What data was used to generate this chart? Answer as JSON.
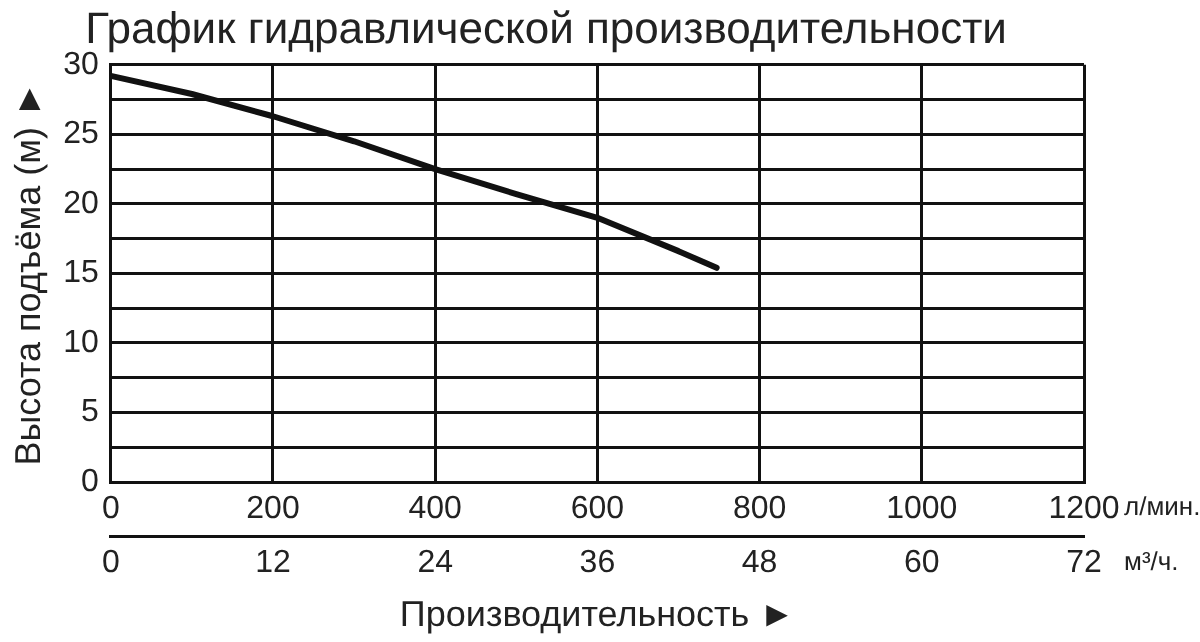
{
  "chart_data": {
    "type": "line",
    "title": "График гидравлической производительности",
    "xlabel": "Производительность ►",
    "ylabel": "Высота подъёма (м) ►",
    "x": [
      0,
      100,
      200,
      300,
      400,
      500,
      600,
      700,
      747
    ],
    "series": [
      {
        "color": "#111111",
        "values": [
          29.2,
          27.9,
          26.3,
          24.5,
          22.5,
          20.7,
          19.0,
          16.6,
          15.4
        ]
      }
    ],
    "xlim": [
      0,
      1200
    ],
    "xticks": [
      0,
      200,
      400,
      600,
      800,
      1000,
      1200
    ],
    "x2lim": [
      0,
      72
    ],
    "x2ticks": [
      0,
      12,
      24,
      36,
      48,
      60,
      72
    ],
    "ylim": [
      0,
      30
    ],
    "yticks": [
      0,
      {
        "value": 2.5,
        "label": null
      },
      5,
      {
        "value": 7.5,
        "label": null
      },
      10,
      {
        "value": 12.5,
        "label": null
      },
      15,
      {
        "value": 17.5,
        "label": null
      },
      20,
      {
        "value": 22.5,
        "label": null
      },
      25,
      {
        "value": 27.5,
        "label": null
      },
      30
    ],
    "annotations": [
      "л/мин.",
      "м³/ч."
    ],
    "grid": true,
    "legend": false,
    "marker": "none",
    "line_style": "solid"
  }
}
